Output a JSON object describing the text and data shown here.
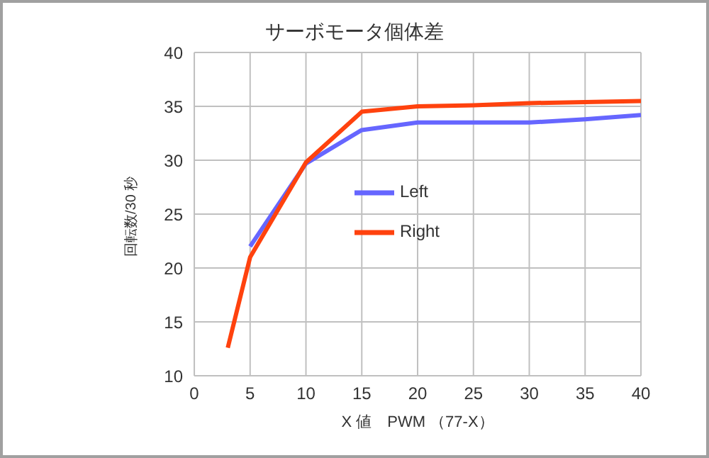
{
  "chart_data": {
    "type": "line",
    "title": "サーボモータ個体差",
    "xlabel": "X 値　PWM （77-X）",
    "ylabel": "回転数/30 秒",
    "xlim": [
      0,
      40
    ],
    "xticks": [
      0,
      5,
      10,
      15,
      20,
      25,
      30,
      35,
      40
    ],
    "ylim": [
      10,
      40
    ],
    "yticks": [
      10,
      15,
      20,
      25,
      30,
      35,
      40
    ],
    "grid": true,
    "legend": "center",
    "marker": "none",
    "line_style": "solid",
    "series": [
      {
        "name": "Left",
        "color": "#6666ff",
        "x": [
          5,
          10,
          15,
          20,
          30,
          35,
          40
        ],
        "values": [
          22,
          29.7,
          32.8,
          33.5,
          33.5,
          33.8,
          34.2
        ]
      },
      {
        "name": "Right",
        "color": "#ff420e",
        "x": [
          3,
          5,
          10,
          15,
          20,
          25,
          30,
          35,
          40
        ],
        "values": [
          12.6,
          21,
          29.8,
          34.5,
          35,
          35.1,
          35.3,
          35.4,
          35.5
        ]
      }
    ]
  }
}
